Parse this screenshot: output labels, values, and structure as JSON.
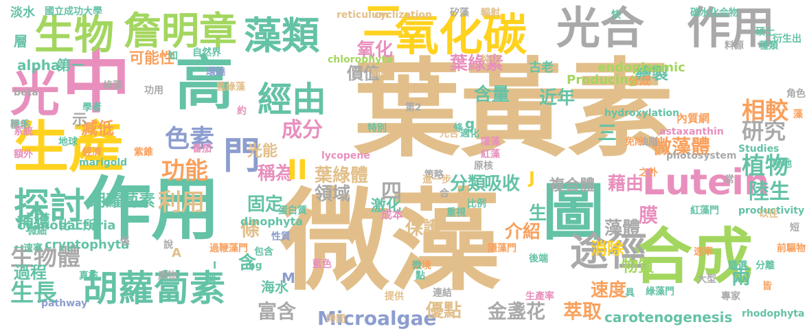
{
  "palette": {
    "tan": "#e2bf8a",
    "green": "#a3d65f",
    "teal": "#64c2a6",
    "gray": "#a9a9a9",
    "pink": "#e88fbd",
    "yellow": "#ffd21f",
    "blue": "#8c9dcf",
    "orange": "#f9a05c"
  },
  "words": [
    {
      "text": "葉黃素",
      "color": "tan"
    },
    {
      "text": "微藻",
      "color": "tan"
    },
    {
      "text": "高",
      "color": "teal"
    },
    {
      "text": "中",
      "color": "pink"
    },
    {
      "text": "光",
      "color": "pink"
    },
    {
      "text": "生產",
      "color": "yellow"
    },
    {
      "text": "作用",
      "color": "teal"
    },
    {
      "text": "圖",
      "color": "teal"
    },
    {
      "text": "合成",
      "color": "green"
    },
    {
      "text": "氧化碳",
      "color": "yellow"
    },
    {
      "text": "光合",
      "color": "gray"
    },
    {
      "text": "作用",
      "color": "gray"
    },
    {
      "text": "詹明章",
      "color": "green"
    },
    {
      "text": "藻類",
      "color": "teal"
    },
    {
      "text": "生物",
      "color": "green"
    },
    {
      "text": "經由",
      "color": "teal"
    },
    {
      "text": "Lutein",
      "color": "pink"
    },
    {
      "text": "途徑",
      "color": "gray"
    },
    {
      "text": "胡蘿蔔素",
      "color": "teal"
    },
    {
      "text": "探討",
      "color": "teal"
    },
    {
      "text": "門",
      "color": "blue"
    },
    {
      "text": "氧化",
      "color": "pink"
    },
    {
      "text": "二",
      "color": "yellow"
    },
    {
      "text": "色素",
      "color": "blue"
    },
    {
      "text": "功能",
      "color": "orange"
    },
    {
      "text": "成分",
      "color": "pink"
    },
    {
      "text": "稱為",
      "color": "pink"
    },
    {
      "text": "利用",
      "color": "tan"
    },
    {
      "text": "生物體",
      "color": "gray"
    },
    {
      "text": "生長",
      "color": "teal"
    },
    {
      "text": "植物",
      "color": "teal"
    },
    {
      "text": "相較",
      "color": "orange"
    },
    {
      "text": "研究",
      "color": "gray"
    },
    {
      "text": "微藻體",
      "color": "orange"
    },
    {
      "text": "藉由",
      "color": "pink"
    },
    {
      "text": "陸生",
      "color": "teal"
    },
    {
      "text": "Microalgae",
      "color": "blue"
    },
    {
      "text": "金盞花",
      "color": "gray"
    },
    {
      "text": "萃取",
      "color": "orange"
    },
    {
      "text": "速度",
      "color": "orange"
    },
    {
      "text": "carotenogenesis",
      "color": "teal"
    },
    {
      "text": "富含",
      "color": "gray"
    },
    {
      "text": "優點",
      "color": "tan"
    },
    {
      "text": "葉綠體",
      "color": "tan"
    },
    {
      "text": "領域",
      "color": "gray"
    },
    {
      "text": "分類",
      "color": "teal"
    },
    {
      "text": "吸收",
      "color": "teal"
    },
    {
      "text": "複合體",
      "color": "gray"
    },
    {
      "text": "II",
      "color": "yellow"
    },
    {
      "text": "四",
      "color": "gray"
    },
    {
      "text": "減低",
      "color": "orange"
    },
    {
      "text": "光能",
      "color": "tan"
    },
    {
      "text": "三",
      "color": "teal"
    },
    {
      "text": "近年",
      "color": "teal"
    },
    {
      "text": "含量",
      "color": "teal"
    },
    {
      "text": "價值",
      "color": "gray"
    },
    {
      "text": "繪製",
      "color": "teal"
    },
    {
      "text": "葉綠素",
      "color": "pink"
    },
    {
      "text": "古老",
      "color": "teal"
    },
    {
      "text": "endoplasmic",
      "color": "green"
    },
    {
      "text": "Producing",
      "color": "green"
    },
    {
      "text": "分成",
      "color": "orange"
    },
    {
      "text": "可能性",
      "color": "orange"
    },
    {
      "text": "第一",
      "color": "teal"
    },
    {
      "text": "alpha",
      "color": "teal"
    },
    {
      "text": "捕獲",
      "color": "teal"
    },
    {
      "text": "胡蘿蔔素",
      "color": "teal"
    },
    {
      "text": "化工所",
      "color": "teal"
    },
    {
      "text": "cyanobacteria",
      "color": "teal"
    },
    {
      "text": "cryptophyta",
      "color": "teal"
    },
    {
      "text": "過程",
      "color": "teal"
    },
    {
      "text": "海水",
      "color": "teal"
    },
    {
      "text": "固定",
      "color": "teal"
    },
    {
      "text": "條",
      "color": "tan"
    },
    {
      "text": "含",
      "color": "teal"
    },
    {
      "text": "介紹",
      "color": "orange"
    },
    {
      "text": "保護",
      "color": "tan"
    },
    {
      "text": "激化",
      "color": "teal"
    },
    {
      "text": "物質",
      "color": "green"
    },
    {
      "text": "兩",
      "color": "teal"
    },
    {
      "text": "膜",
      "color": "pink"
    },
    {
      "text": "藻體",
      "color": "gray"
    },
    {
      "text": "消除",
      "color": "yellow"
    },
    {
      "text": "生",
      "color": "teal"
    },
    {
      "text": "J",
      "color": "yellow"
    },
    {
      "text": "M",
      "color": "blue"
    },
    {
      "text": "g",
      "color": "teal"
    },
    {
      "text": "A",
      "color": "tan"
    },
    {
      "text": "示",
      "color": "gray"
    },
    {
      "text": "淡水",
      "color": "teal"
    },
    {
      "text": "國立成功大學",
      "color": "teal"
    },
    {
      "text": "層",
      "color": "teal"
    },
    {
      "text": "自然界",
      "color": "teal"
    },
    {
      "text": "環繞",
      "color": "blue"
    },
    {
      "text": "藍綠藻",
      "color": "tan"
    },
    {
      "text": "綠藻",
      "color": "gray"
    },
    {
      "text": "chlorophyta",
      "color": "green"
    },
    {
      "text": "纯化",
      "color": "tan"
    },
    {
      "text": "碳水化合物",
      "color": "teal"
    },
    {
      "text": "碩士",
      "color": "teal"
    },
    {
      "text": "種類",
      "color": "teal"
    },
    {
      "text": "料源",
      "color": "gray"
    },
    {
      "text": "衍生出",
      "color": "teal"
    },
    {
      "text": "特別",
      "color": "teal"
    },
    {
      "text": "地球",
      "color": "teal"
    },
    {
      "text": "學者",
      "color": "teal"
    },
    {
      "text": "鞭毛",
      "color": "teal"
    },
    {
      "text": "marigold",
      "color": "teal"
    },
    {
      "text": "dinophyta",
      "color": "teal"
    },
    {
      "text": "rhodophyta",
      "color": "teal"
    },
    {
      "text": "Studies",
      "color": "teal"
    },
    {
      "text": "productivity",
      "color": "teal"
    },
    {
      "text": "hydroxylation",
      "color": "teal"
    },
    {
      "text": "lycopene",
      "color": "pink"
    },
    {
      "text": "astaxanthin",
      "color": "pink"
    },
    {
      "text": "photosystem",
      "color": "gray"
    },
    {
      "text": "reticulum",
      "color": "tan"
    },
    {
      "text": "cyclization",
      "color": "tan"
    },
    {
      "text": "pathway",
      "color": "blue"
    },
    {
      "text": "beta",
      "color": "gray"
    },
    {
      "text": "內質網",
      "color": "orange"
    },
    {
      "text": "油脂",
      "color": "gray"
    },
    {
      "text": "隱藻",
      "color": "pink"
    },
    {
      "text": "紅藻",
      "color": "pink"
    },
    {
      "text": "紅藻門",
      "color": "teal"
    },
    {
      "text": "綠藻門",
      "color": "teal"
    },
    {
      "text": "隱藻門",
      "color": "orange"
    },
    {
      "text": "速率",
      "color": "orange"
    },
    {
      "text": "篩選",
      "color": "teal"
    },
    {
      "text": "環境",
      "color": "orange"
    },
    {
      "text": "連結",
      "color": "gray"
    },
    {
      "text": "原核",
      "color": "gray"
    },
    {
      "text": "策略",
      "color": "gray"
    },
    {
      "text": "蛋白質",
      "color": "teal"
    },
    {
      "text": "比例",
      "color": "teal"
    },
    {
      "text": "重視",
      "color": "teal"
    },
    {
      "text": "生產率",
      "color": "pink"
    },
    {
      "text": "大型",
      "color": "gray"
    },
    {
      "text": "專家",
      "color": "gray"
    },
    {
      "text": "分離",
      "color": "teal"
    },
    {
      "text": "前驅物",
      "color": "orange"
    },
    {
      "text": "短",
      "color": "gray"
    },
    {
      "text": "皆",
      "color": "orange"
    },
    {
      "text": "以往",
      "color": "tan"
    },
    {
      "text": "免除",
      "color": "orange"
    },
    {
      "text": "適化",
      "color": "teal"
    },
    {
      "text": "成本",
      "color": "pink"
    },
    {
      "text": "包含",
      "color": "teal"
    },
    {
      "text": "細",
      "color": "teal"
    },
    {
      "text": "微細",
      "color": "teal"
    },
    {
      "text": "真核",
      "color": "teal"
    },
    {
      "text": "一速率",
      "color": "teal"
    },
    {
      "text": "過鞭藻門",
      "color": "orange"
    },
    {
      "text": "性質",
      "color": "blue"
    },
    {
      "text": "時間",
      "color": "tan"
    },
    {
      "text": "mg",
      "color": "teal"
    },
    {
      "text": "功用",
      "color": "gray"
    },
    {
      "text": "基化",
      "color": "gray"
    },
    {
      "text": "額外",
      "color": "pink"
    },
    {
      "text": "系統",
      "color": "pink"
    },
    {
      "text": "矽藻",
      "color": "gray"
    },
    {
      "text": "輻射",
      "color": "tan"
    },
    {
      "text": "快",
      "color": "teal"
    },
    {
      "text": "知",
      "color": "teal"
    },
    {
      "text": "角色",
      "color": "gray"
    },
    {
      "text": "後端",
      "color": "teal"
    },
    {
      "text": "進一步",
      "color": "tan"
    },
    {
      "text": "第2",
      "color": "gray"
    },
    {
      "text": "點",
      "color": "teal"
    },
    {
      "text": "微",
      "color": "teal"
    },
    {
      "text": "藻",
      "color": "orange"
    },
    {
      "text": "條",
      "color": "teal"
    },
    {
      "text": "I",
      "color": "teal"
    },
    {
      "text": "光合",
      "color": "tan"
    },
    {
      "text": "產物",
      "color": "gray"
    },
    {
      "text": "藍色",
      "color": "pink"
    },
    {
      "text": "提供",
      "color": "tan"
    },
    {
      "text": "陸地",
      "color": "teal"
    },
    {
      "text": "具",
      "color": "teal"
    },
    {
      "text": "常",
      "color": "gray"
    },
    {
      "text": "之外",
      "color": "orange"
    },
    {
      "text": "輔助",
      "color": "tan"
    },
    {
      "text": "合",
      "color": "gray"
    },
    {
      "text": "番茄",
      "color": "pink"
    },
    {
      "text": "紫錐",
      "color": "orange"
    },
    {
      "text": "約",
      "color": "pink"
    },
    {
      "text": "係",
      "color": "gray"
    },
    {
      "text": "經濟",
      "color": "orange"
    },
    {
      "text": "說",
      "color": "gray"
    }
  ]
}
